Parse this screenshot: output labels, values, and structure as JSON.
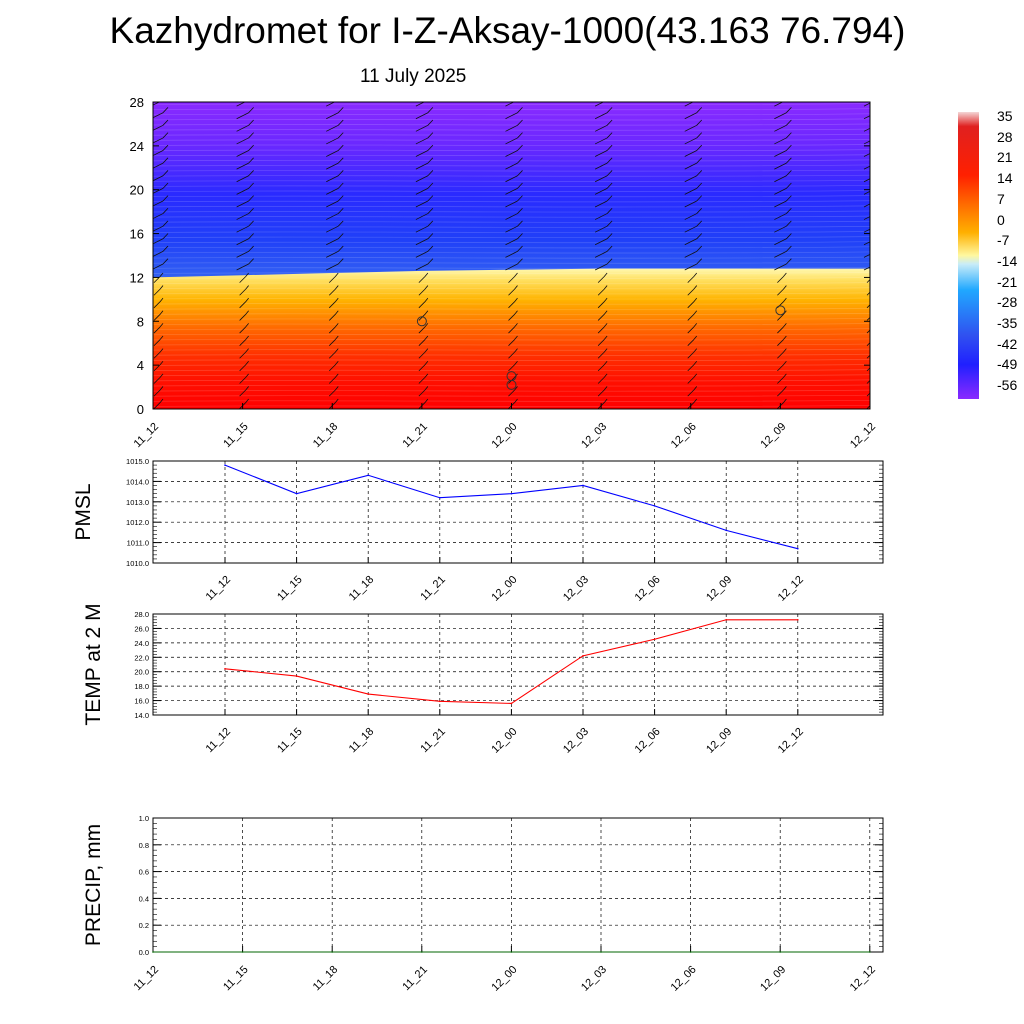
{
  "header": {
    "title": "Kazhydromet for I-Z-Aksay-1000(43.163 76.794)",
    "subtitle": "11 July 2025"
  },
  "colorbar": {
    "labels": [
      "35",
      "28",
      "21",
      "14",
      "7",
      "0",
      "-7",
      "-14",
      "-21",
      "-28",
      "-35",
      "-42",
      "-49",
      "-56"
    ]
  },
  "chart_data": [
    {
      "type": "heatmap",
      "name_hint": "temperature cross-section with wind barbs",
      "x_ticks": [
        "11_12",
        "11_15",
        "11_18",
        "11_21",
        "12_00",
        "12_03",
        "12_06",
        "12_09",
        "12_12"
      ],
      "y_ticks": [
        "0",
        "4",
        "8",
        "12",
        "16",
        "20",
        "24",
        "28"
      ],
      "ylim": [
        0,
        28
      ],
      "color_scale": [
        35,
        28,
        21,
        14,
        7,
        0,
        -7,
        -14,
        -21,
        -28,
        -35,
        -42,
        -49,
        -56
      ],
      "freezing_level_y": [
        12.0,
        12.2,
        12.4,
        12.6,
        12.7,
        12.8,
        12.8,
        12.8,
        12.8
      ],
      "markers": [
        {
          "x": "11_21",
          "y": 8.0
        },
        {
          "x": "12_00",
          "y": 3.0
        },
        {
          "x": "12_00",
          "y": 2.2
        },
        {
          "x": "12_09",
          "y": 9.0
        }
      ]
    },
    {
      "type": "line",
      "ylabel": "PMSL",
      "categories": [
        "11_12",
        "11_15",
        "11_18",
        "11_21",
        "12_00",
        "12_03",
        "12_06",
        "12_09",
        "12_12"
      ],
      "values": [
        1014.8,
        1013.4,
        1014.3,
        1013.2,
        1013.4,
        1013.8,
        1012.8,
        1011.6,
        1010.7
      ],
      "y_ticks": [
        "1010.0",
        "1011.0",
        "1012.0",
        "1013.0",
        "1014.0",
        "1015.0"
      ],
      "ylim": [
        1010,
        1015
      ],
      "color": "#0000ff",
      "grid": true
    },
    {
      "type": "line",
      "ylabel": "TEMP at 2 M",
      "categories": [
        "11_12",
        "11_15",
        "11_18",
        "11_21",
        "12_00",
        "12_03",
        "12_06",
        "12_09",
        "12_12"
      ],
      "values": [
        20.4,
        19.4,
        16.9,
        15.9,
        15.6,
        22.2,
        24.5,
        27.2,
        27.2
      ],
      "y_ticks": [
        "14.0",
        "16.0",
        "18.0",
        "20.0",
        "22.0",
        "24.0",
        "26.0",
        "28.0"
      ],
      "ylim": [
        14,
        28
      ],
      "color": "#ff0000",
      "grid": true
    },
    {
      "type": "line",
      "ylabel": "PRECIP, mm",
      "categories": [
        "11_12",
        "11_15",
        "11_18",
        "11_21",
        "12_00",
        "12_03",
        "12_06",
        "12_09",
        "12_12"
      ],
      "values": [
        0,
        0,
        0,
        0,
        0,
        0,
        0,
        0,
        0
      ],
      "y_ticks": [
        "0.0",
        "0.2",
        "0.4",
        "0.6",
        "0.8",
        "1.0"
      ],
      "ylim": [
        0,
        1
      ],
      "color": "#006400",
      "grid": true
    }
  ]
}
